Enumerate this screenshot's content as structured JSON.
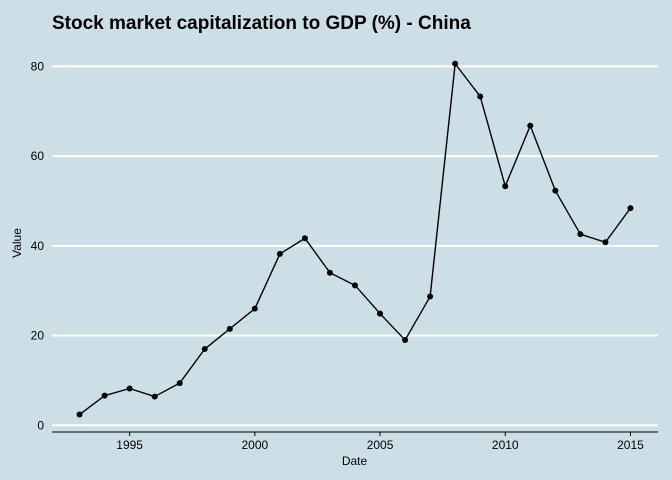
{
  "chart_data": {
    "type": "line",
    "title": "Stock market capitalization to GDP (%) - China",
    "xlabel": "Date",
    "ylabel": "Value",
    "x": [
      1993,
      1994,
      1995,
      1996,
      1997,
      1998,
      1999,
      2000,
      2001,
      2002,
      2003,
      2004,
      2005,
      2006,
      2007,
      2008,
      2009,
      2010,
      2011,
      2012,
      2013,
      2014,
      2015
    ],
    "series": [
      {
        "values": [
          2.4,
          6.6,
          8.2,
          6.4,
          9.4,
          17.0,
          21.5,
          26.0,
          38.2,
          41.7,
          34.0,
          31.2,
          24.9,
          19.0,
          28.7,
          80.6,
          73.3,
          53.3,
          66.8,
          52.3,
          42.6,
          40.8,
          48.4
        ]
      }
    ],
    "xlim": [
      1991.9,
      2016.1
    ],
    "ylim": [
      -1.5,
      85
    ],
    "xticks": [
      "1995",
      "2000",
      "2005",
      "2010",
      "2015"
    ],
    "yticks": [
      "0",
      "20",
      "40",
      "60",
      "80"
    ],
    "grid": "horizontal",
    "colors": {
      "background": "#cddfe6",
      "line": "#000000",
      "grid": "#ffffff"
    }
  }
}
